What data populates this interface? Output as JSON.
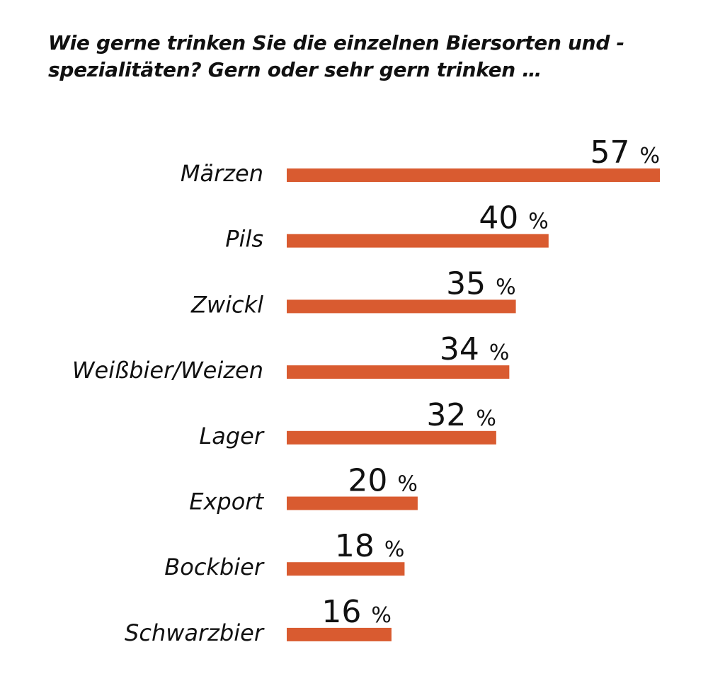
{
  "chart_data": {
    "type": "bar",
    "orientation": "horizontal",
    "title": "Wie gerne trinken Sie die einzelnen Biersorten und -spezialitäten? Gern oder sehr gern trinken …",
    "categories": [
      "Märzen",
      "Pils",
      "Zwickl",
      "Weißbier/Weizen",
      "Lager",
      "Export",
      "Bockbier",
      "Schwarzbier"
    ],
    "values": [
      57,
      40,
      35,
      34,
      32,
      20,
      18,
      16
    ],
    "unit": "%",
    "xlim": [
      0,
      57
    ],
    "grid": false,
    "bar_color": "#d95b30"
  }
}
